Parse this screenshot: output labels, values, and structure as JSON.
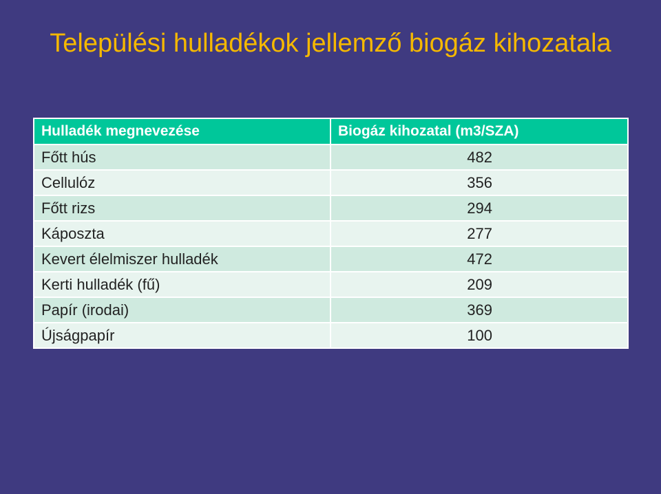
{
  "slide": {
    "title": "Települési hulladékok jellemző biogáz kihozatala"
  },
  "table": {
    "headers": [
      "Hulladék megnevezése",
      "Biogáz kihozatal (m3/SZA)"
    ],
    "rows": [
      {
        "name": "Főtt hús",
        "value": "482"
      },
      {
        "name": "Cellulóz",
        "value": "356"
      },
      {
        "name": "Főtt rizs",
        "value": "294"
      },
      {
        "name": "Káposzta",
        "value": "277"
      },
      {
        "name": "Kevert élelmiszer hulladék",
        "value": "472"
      },
      {
        "name": "Kerti hulladék (fű)",
        "value": "209"
      },
      {
        "name": "Papír (irodai)",
        "value": "369"
      },
      {
        "name": "Újságpapír",
        "value": "100"
      }
    ]
  },
  "colors": {
    "background": "#3f3a80",
    "title": "#f5b800",
    "header": "#00c79a",
    "row_dark": "#cfeadf",
    "row_light": "#e8f4ef"
  }
}
